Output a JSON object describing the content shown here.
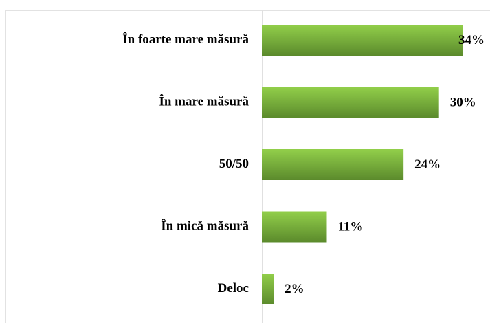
{
  "chart_data": {
    "type": "bar",
    "orientation": "horizontal",
    "categories": [
      "În foarte mare măsură",
      "În mare măsură",
      "50/50",
      "În mică măsură",
      "Deloc"
    ],
    "values": [
      34,
      30,
      24,
      11,
      2
    ],
    "value_labels": [
      "34%",
      "30%",
      "24%",
      "11%",
      "2%"
    ],
    "color": "#7ab648"
  }
}
